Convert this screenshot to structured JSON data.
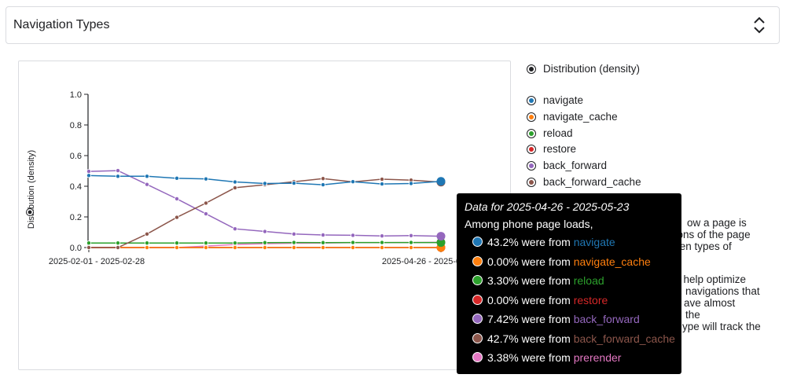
{
  "header": {
    "title": "Navigation Types",
    "toggle_icon": "unfold-icon"
  },
  "legend": {
    "metric": {
      "label": "Distribution (density)"
    },
    "items": [
      {
        "label": "navigate",
        "color": "#1f77b4"
      },
      {
        "label": "navigate_cache",
        "color": "#ff7f0e"
      },
      {
        "label": "reload",
        "color": "#2ca02c"
      },
      {
        "label": "restore",
        "color": "#d62728"
      },
      {
        "label": "back_forward",
        "color": "#9467bd"
      },
      {
        "label": "back_forward_cache",
        "color": "#8c564b"
      }
    ]
  },
  "description": {
    "line1": "ow a page is",
    "line2": "ctions of the page",
    "line3": "ven types of",
    "line4": "s help optimize",
    "line5": "e, navigations that",
    "line6": "ave almost",
    "line7": "the",
    "line8": "ype will track the"
  },
  "tooltip": {
    "title": "Data for 2025-04-26 - 2025-05-23",
    "subtitle": "Among phone page loads,",
    "rows": [
      {
        "value": "43.2%",
        "text": " were from ",
        "name": "navigate",
        "color": "#1f77b4"
      },
      {
        "value": "0.00%",
        "text": " were from ",
        "name": "navigate_cache",
        "color": "#ff7f0e"
      },
      {
        "value": "3.30%",
        "text": " were from ",
        "name": "reload",
        "color": "#2ca02c"
      },
      {
        "value": "0.00%",
        "text": " were from ",
        "name": "restore",
        "color": "#d62728"
      },
      {
        "value": "7.42%",
        "text": " were from ",
        "name": "back_forward",
        "color": "#9467bd"
      },
      {
        "value": "42.7%",
        "text": " were from ",
        "name": "back_forward_cache",
        "color": "#8c564b"
      },
      {
        "value": "3.38%",
        "text": " were from ",
        "name": "prerender",
        "color": "#e377c2"
      }
    ]
  },
  "chart_data": {
    "type": "line",
    "ylabel": "Distribution (density)",
    "ylim": [
      0,
      1
    ],
    "yticks": [
      "1.0",
      "0.8",
      "0.6",
      "0.4",
      "0.2",
      "0.0"
    ],
    "x_labels": [
      "2025-02-01 - 2025-02-28",
      "2025-04-26 - 2025-05-23"
    ],
    "series": [
      {
        "name": "navigate",
        "color": "#1f77b4",
        "values": [
          0.47,
          0.465,
          0.465,
          0.452,
          0.448,
          0.428,
          0.418,
          0.42,
          0.41,
          0.43,
          0.415,
          0.418,
          0.432
        ]
      },
      {
        "name": "navigate_cache",
        "color": "#ff7f0e",
        "values": [
          0,
          0,
          0,
          0,
          0,
          0,
          0,
          0,
          0,
          0,
          0,
          0,
          0
        ]
      },
      {
        "name": "reload",
        "color": "#2ca02c",
        "values": [
          0.03,
          0.03,
          0.03,
          0.03,
          0.03,
          0.03,
          0.032,
          0.033,
          0.032,
          0.033,
          0.033,
          0.033,
          0.033
        ]
      },
      {
        "name": "restore",
        "color": "#d62728",
        "values": [
          0,
          0,
          0,
          0,
          0,
          0,
          0,
          0,
          0,
          0,
          0,
          0,
          0
        ]
      },
      {
        "name": "back_forward",
        "color": "#9467bd",
        "values": [
          0.497,
          0.502,
          0.412,
          0.318,
          0.22,
          0.122,
          0.105,
          0.088,
          0.082,
          0.08,
          0.076,
          0.078,
          0.074
        ]
      },
      {
        "name": "back_forward_cache",
        "color": "#8c564b",
        "values": [
          0,
          0,
          0.088,
          0.197,
          0.29,
          0.39,
          0.41,
          0.43,
          0.45,
          0.428,
          0.446,
          0.44,
          0.427
        ]
      },
      {
        "name": "prerender",
        "color": "#e377c2",
        "values": [
          0,
          0,
          0,
          0,
          0.01,
          0.02,
          0.025,
          0.028,
          0.03,
          0.032,
          0.032,
          0.033,
          0.034
        ]
      }
    ]
  }
}
